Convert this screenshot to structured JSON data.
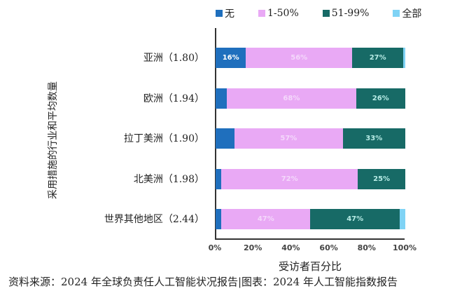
{
  "chart_data": {
    "type": "bar",
    "orientation": "horizontal",
    "stacked": true,
    "title": "",
    "xlabel": "受访者百分比",
    "ylabel": "采用措施的行业和平均数量",
    "xlim": [
      0,
      100
    ],
    "x_ticks": [
      "0%",
      "20%",
      "40%",
      "60%",
      "80%",
      "100%"
    ],
    "categories": [
      "亚洲（1.80）",
      "欧洲（1.94）",
      "拉丁美洲（1.90）",
      "北美洲（1.98）",
      "世界其他地区（2.44）"
    ],
    "series": [
      {
        "name": "无",
        "color": "#1f6fbd",
        "values": [
          16,
          6,
          10,
          3,
          3
        ],
        "labels": [
          "16%",
          "",
          "",
          "",
          ""
        ]
      },
      {
        "name": "1-50%",
        "color": "#e9a9f5",
        "values": [
          56,
          68,
          57,
          72,
          47
        ],
        "labels": [
          "56%",
          "68%",
          "57%",
          "72%",
          "47%"
        ]
      },
      {
        "name": "51-99%",
        "color": "#176a66",
        "values": [
          27,
          26,
          33,
          25,
          47
        ],
        "labels": [
          "27%",
          "26%",
          "33%",
          "25%",
          "47%"
        ]
      },
      {
        "name": "全部",
        "color": "#7fd3f5",
        "values": [
          1,
          0,
          0,
          0,
          3
        ],
        "labels": [
          "",
          "",
          "",
          "",
          ""
        ]
      }
    ],
    "legend_position": "top",
    "grid": false
  },
  "legend": [
    {
      "label": "无",
      "color": "#1f6fbd"
    },
    {
      "label": "1-50%",
      "color": "#e9a9f5"
    },
    {
      "label": "51-99%",
      "color": "#176a66"
    },
    {
      "label": "全部",
      "color": "#7fd3f5"
    }
  ],
  "axes": {
    "ylabel": "采用措施的行业和平均数量",
    "xlabel": "受访者百分比",
    "ticks": [
      "0%",
      "20%",
      "40%",
      "60%",
      "80%",
      "100%"
    ]
  },
  "categories": [
    {
      "label": "亚洲（1.80）"
    },
    {
      "label": "欧洲（1.94）"
    },
    {
      "label": "拉丁美洲（1.90）"
    },
    {
      "label": "北美洲（1.98）"
    },
    {
      "label": "世界其他地区（2.44）"
    }
  ],
  "source": "资料来源：2024 年全球负责任人工智能状况报告|图表：2024 年人工智能指数报告"
}
